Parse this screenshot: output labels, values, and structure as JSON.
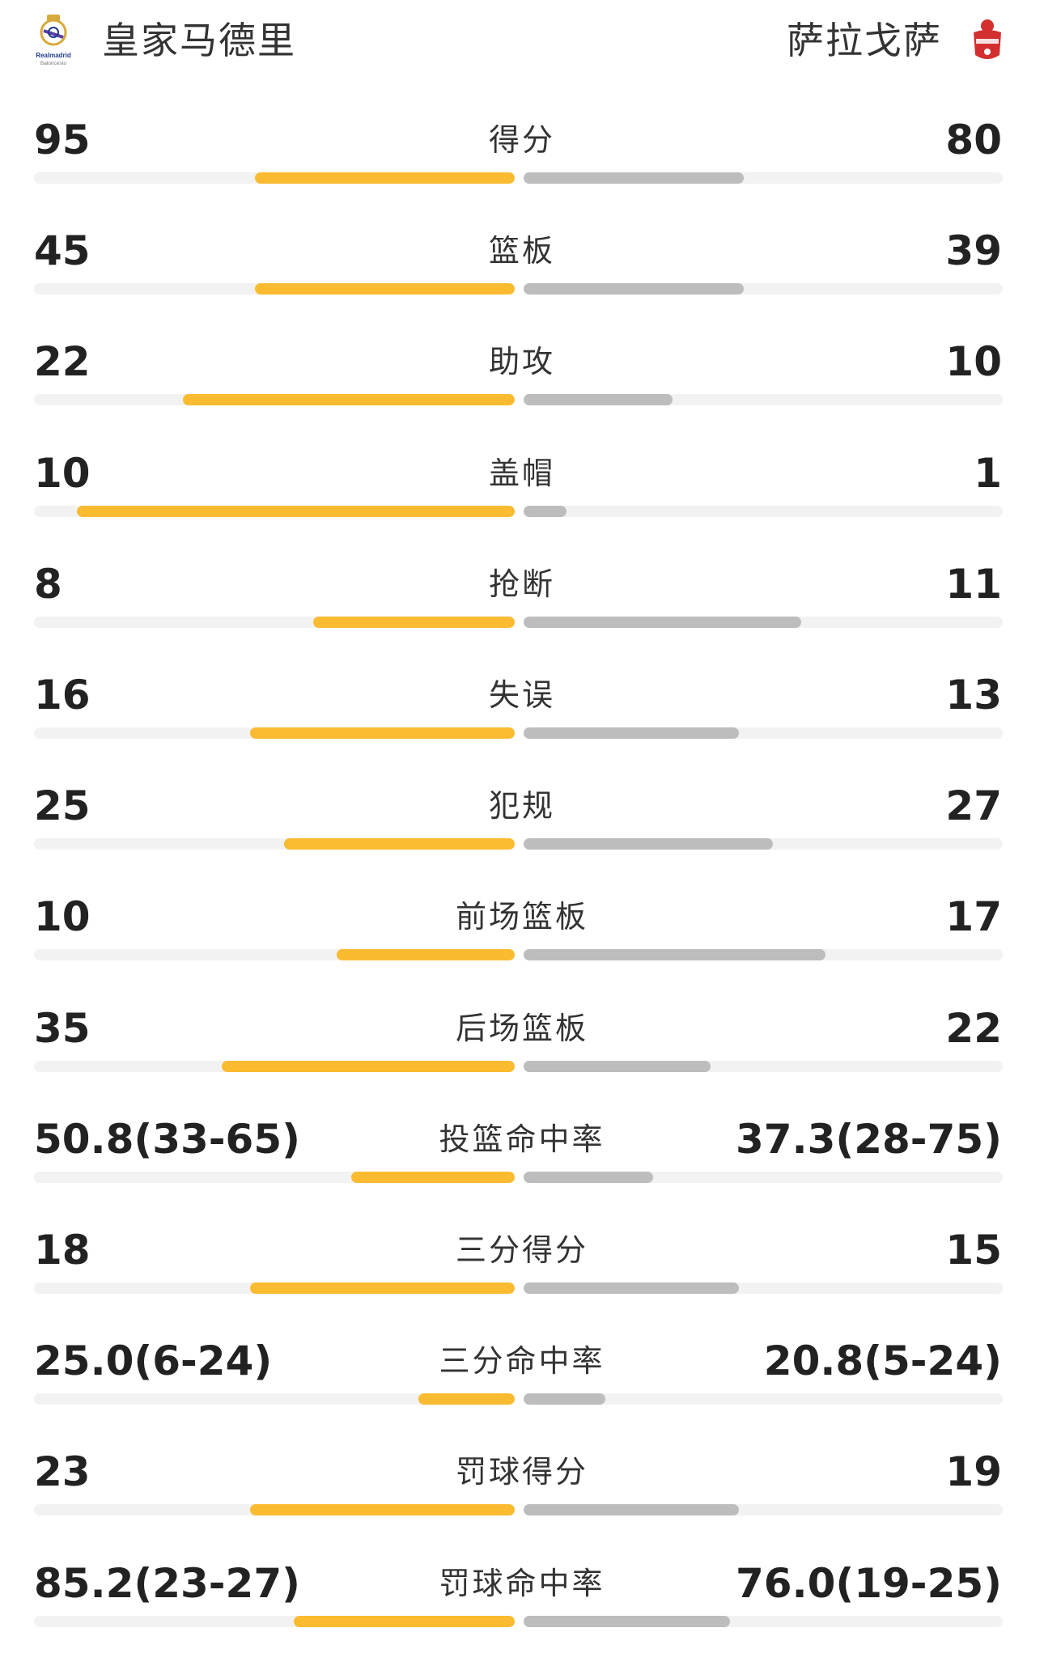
{
  "header": {
    "home_team": "皇家马德里",
    "away_team": "萨拉戈萨",
    "home_logo_text": "Realmadrid Baloncesto",
    "home_logo_icon": "real-madrid-crest-icon",
    "away_logo_icon": "zaragoza-crest-icon"
  },
  "colors": {
    "home_bar": "#fbbb31",
    "away_bar": "#bdbdbd",
    "track": "#f2f2f2"
  },
  "stats": [
    {
      "label": "得分",
      "home": "95",
      "away": "80",
      "home_share": 0.54,
      "away_share": 0.46
    },
    {
      "label": "篮板",
      "home": "45",
      "away": "39",
      "home_share": 0.54,
      "away_share": 0.46
    },
    {
      "label": "助攻",
      "home": "22",
      "away": "10",
      "home_share": 0.69,
      "away_share": 0.31
    },
    {
      "label": "盖帽",
      "home": "10",
      "away": "1",
      "home_share": 0.91,
      "away_share": 0.09
    },
    {
      "label": "抢断",
      "home": "8",
      "away": "11",
      "home_share": 0.42,
      "away_share": 0.58
    },
    {
      "label": "失误",
      "home": "16",
      "away": "13",
      "home_share": 0.55,
      "away_share": 0.45
    },
    {
      "label": "犯规",
      "home": "25",
      "away": "27",
      "home_share": 0.48,
      "away_share": 0.52
    },
    {
      "label": "前场篮板",
      "home": "10",
      "away": "17",
      "home_share": 0.37,
      "away_share": 0.63
    },
    {
      "label": "后场篮板",
      "home": "35",
      "away": "22",
      "home_share": 0.61,
      "away_share": 0.39
    },
    {
      "label": "投篮命中率",
      "home": "50.8(33-65)",
      "away": "37.3(28-75)",
      "home_share": 0.34,
      "away_share": 0.27
    },
    {
      "label": "三分得分",
      "home": "18",
      "away": "15",
      "home_share": 0.55,
      "away_share": 0.45
    },
    {
      "label": "三分命中率",
      "home": "25.0(6-24)",
      "away": "20.8(5-24)",
      "home_share": 0.2,
      "away_share": 0.17
    },
    {
      "label": "罚球得分",
      "home": "23",
      "away": "19",
      "home_share": 0.55,
      "away_share": 0.45
    },
    {
      "label": "罚球命中率",
      "home": "85.2(23-27)",
      "away": "76.0(19-25)",
      "home_share": 0.46,
      "away_share": 0.43
    }
  ]
}
